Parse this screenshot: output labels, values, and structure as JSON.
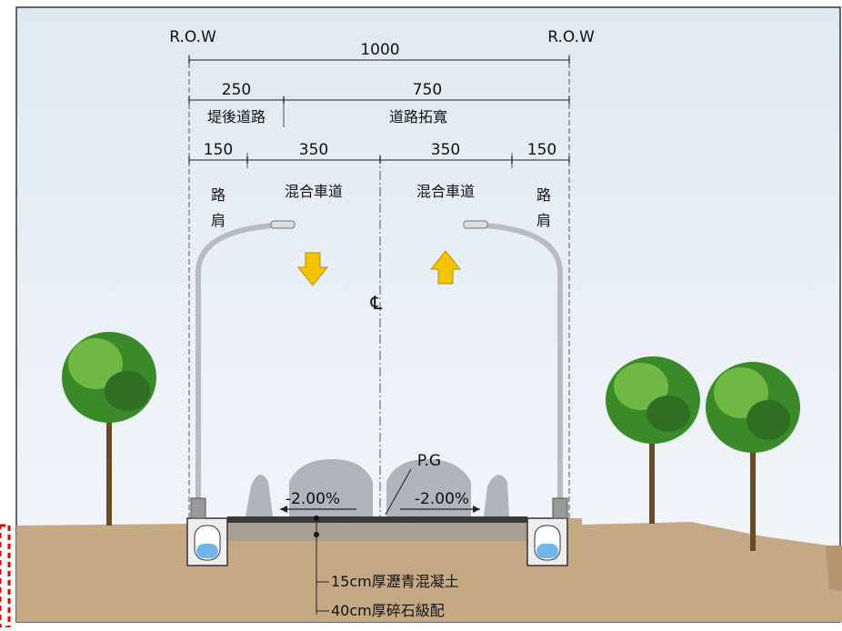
{
  "row_left": "R.O.W",
  "row_right": "R.O.W",
  "total_width": "1000",
  "segments": {
    "embankment_road_width": "250",
    "road_widening_width": "750",
    "embankment_road_label": "堤後道路",
    "road_widening_label": "道路拓寬"
  },
  "lanes": {
    "shoulder_left_width": "150",
    "mixed_left_width": "350",
    "mixed_right_width": "350",
    "shoulder_right_width": "150",
    "mixed_left_label": "混合車道",
    "mixed_right_label": "混合車道",
    "shoulder_left_label": [
      "路",
      "肩"
    ],
    "shoulder_right_label": [
      "路",
      "肩"
    ]
  },
  "centerline_symbol": "℄",
  "pg_label": "P.G",
  "slope_left": "-2.00%",
  "slope_right": "-2.00%",
  "pavement": {
    "layer1": "15cm厚瀝青混凝土",
    "layer2": "40cm厚碎石級配"
  },
  "colors": {
    "arrow": "#f5c400",
    "ground": "#bfa27a",
    "tree_green": "#3a8a2a",
    "sky": "#e6eef5"
  }
}
